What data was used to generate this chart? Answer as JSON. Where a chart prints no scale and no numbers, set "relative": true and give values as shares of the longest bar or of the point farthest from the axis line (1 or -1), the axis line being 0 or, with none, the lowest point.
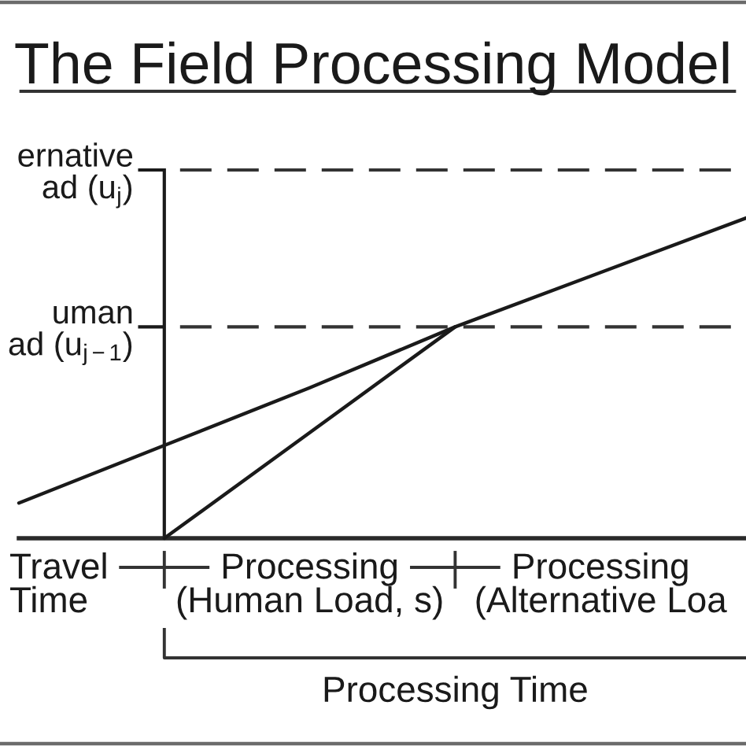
{
  "chart_data": {
    "type": "line",
    "title": "The Field Processing Model",
    "relative": true,
    "categories": [
      null,
      null,
      null,
      null,
      null,
      null
    ],
    "series": [
      {
        "color": "#1a1a1a",
        "values": [
          0.11,
          0.29,
          0.47,
          0.66,
          0.83,
          1.0
        ]
      },
      {
        "color": "#1a1a1a",
        "values": [
          null,
          0,
          0.33,
          0.66,
          null,
          null
        ]
      }
    ],
    "ref_lines": [
      {
        "axis": "y",
        "value": 1.15,
        "label": "ernative\nad (u$_{j}$)",
        "line_style": "dashed",
        "color": "#333333"
      },
      {
        "axis": "y",
        "value": 0.66,
        "label": "uman\nad (u$_{j−1}$)",
        "line_style": "dashed",
        "color": "#333333"
      }
    ],
    "annotations": [
      "Travel\nTime",
      "Processing\n(Human Load, s)",
      "Processing\n(Alternative Loa",
      "Processing Time"
    ]
  }
}
